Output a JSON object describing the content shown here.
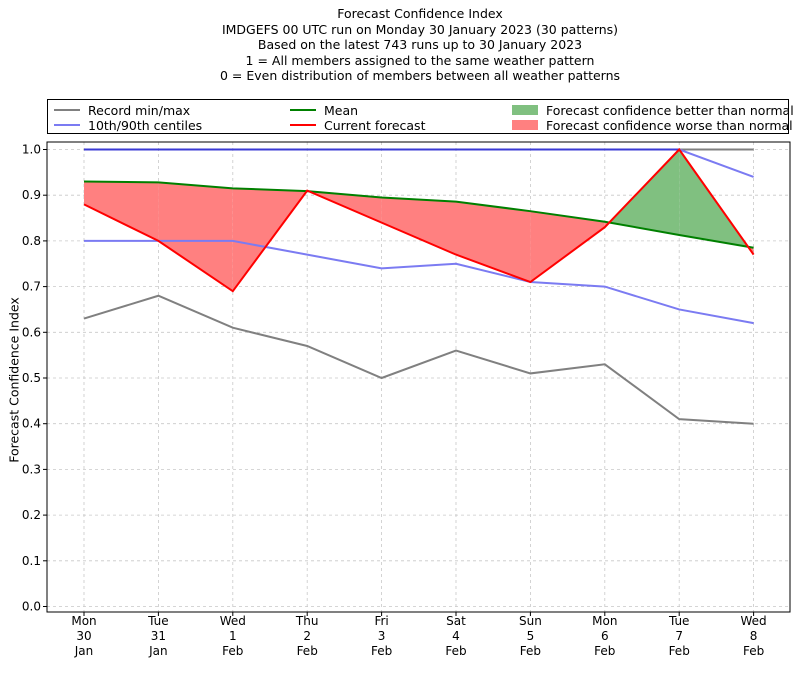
{
  "title_lines": [
    "Forecast Confidence Index",
    "IMDGEFS 00 UTC run on Monday 30 January 2023 (30 patterns)",
    "Based on the latest 743 runs up to 30 January 2023",
    "1 = All members assigned to the same weather pattern",
    "0 = Even distribution of members between all weather patterns"
  ],
  "legend": {
    "record": "Record min/max",
    "centiles": "10th/90th centiles",
    "mean": "Mean",
    "current": "Current forecast",
    "better": "Forecast confidence better than normal",
    "worse": "Forecast confidence worse than normal"
  },
  "colors": {
    "record": "#808080",
    "centiles": "#7b7bf2",
    "max_line": "#3b3bd6",
    "mean": "#008000",
    "current": "#ff0000",
    "better": "#80c080",
    "worse": "#ff8080"
  },
  "chart_data": {
    "type": "line",
    "ylabel": "Forecast Confidence Index",
    "ylim": [
      0,
      1.0
    ],
    "yticks": [
      "0.0",
      "0.1",
      "0.2",
      "0.3",
      "0.4",
      "0.5",
      "0.6",
      "0.7",
      "0.8",
      "0.9",
      "1.0"
    ],
    "grid": true,
    "legend_position": "top",
    "categories": [
      [
        "Mon",
        "30",
        "Jan"
      ],
      [
        "Tue",
        "31",
        "Jan"
      ],
      [
        "Wed",
        "1",
        "Feb"
      ],
      [
        "Thu",
        "2",
        "Feb"
      ],
      [
        "Fri",
        "3",
        "Feb"
      ],
      [
        "Sat",
        "4",
        "Feb"
      ],
      [
        "Sun",
        "5",
        "Feb"
      ],
      [
        "Mon",
        "6",
        "Feb"
      ],
      [
        "Tue",
        "7",
        "Feb"
      ],
      [
        "Wed",
        "8",
        "Feb"
      ]
    ],
    "series": [
      {
        "name": "Record min/max",
        "key": "record_max",
        "values": [
          1.0,
          1.0,
          1.0,
          1.0,
          1.0,
          1.0,
          1.0,
          1.0,
          1.0,
          1.0
        ]
      },
      {
        "name": "Record min/max",
        "key": "record_min",
        "values": [
          0.63,
          0.68,
          0.61,
          0.57,
          0.5,
          0.56,
          0.51,
          0.53,
          0.41,
          0.4
        ]
      },
      {
        "name": "10th/90th centiles",
        "key": "p90",
        "values": [
          1.0,
          1.0,
          1.0,
          1.0,
          1.0,
          1.0,
          1.0,
          1.0,
          1.0,
          0.94
        ]
      },
      {
        "name": "10th/90th centiles",
        "key": "p10",
        "values": [
          0.8,
          0.8,
          0.8,
          0.77,
          0.74,
          0.75,
          0.71,
          0.7,
          0.65,
          0.62
        ]
      },
      {
        "name": "Mean",
        "key": "mean",
        "values": [
          0.93,
          0.928,
          0.915,
          0.909,
          0.895,
          0.886,
          0.865,
          0.842,
          0.813,
          0.785
        ]
      },
      {
        "name": "Current forecast",
        "key": "current",
        "values": [
          0.88,
          0.8,
          0.69,
          0.91,
          0.84,
          0.77,
          0.71,
          0.83,
          1.0,
          0.77
        ]
      }
    ]
  }
}
